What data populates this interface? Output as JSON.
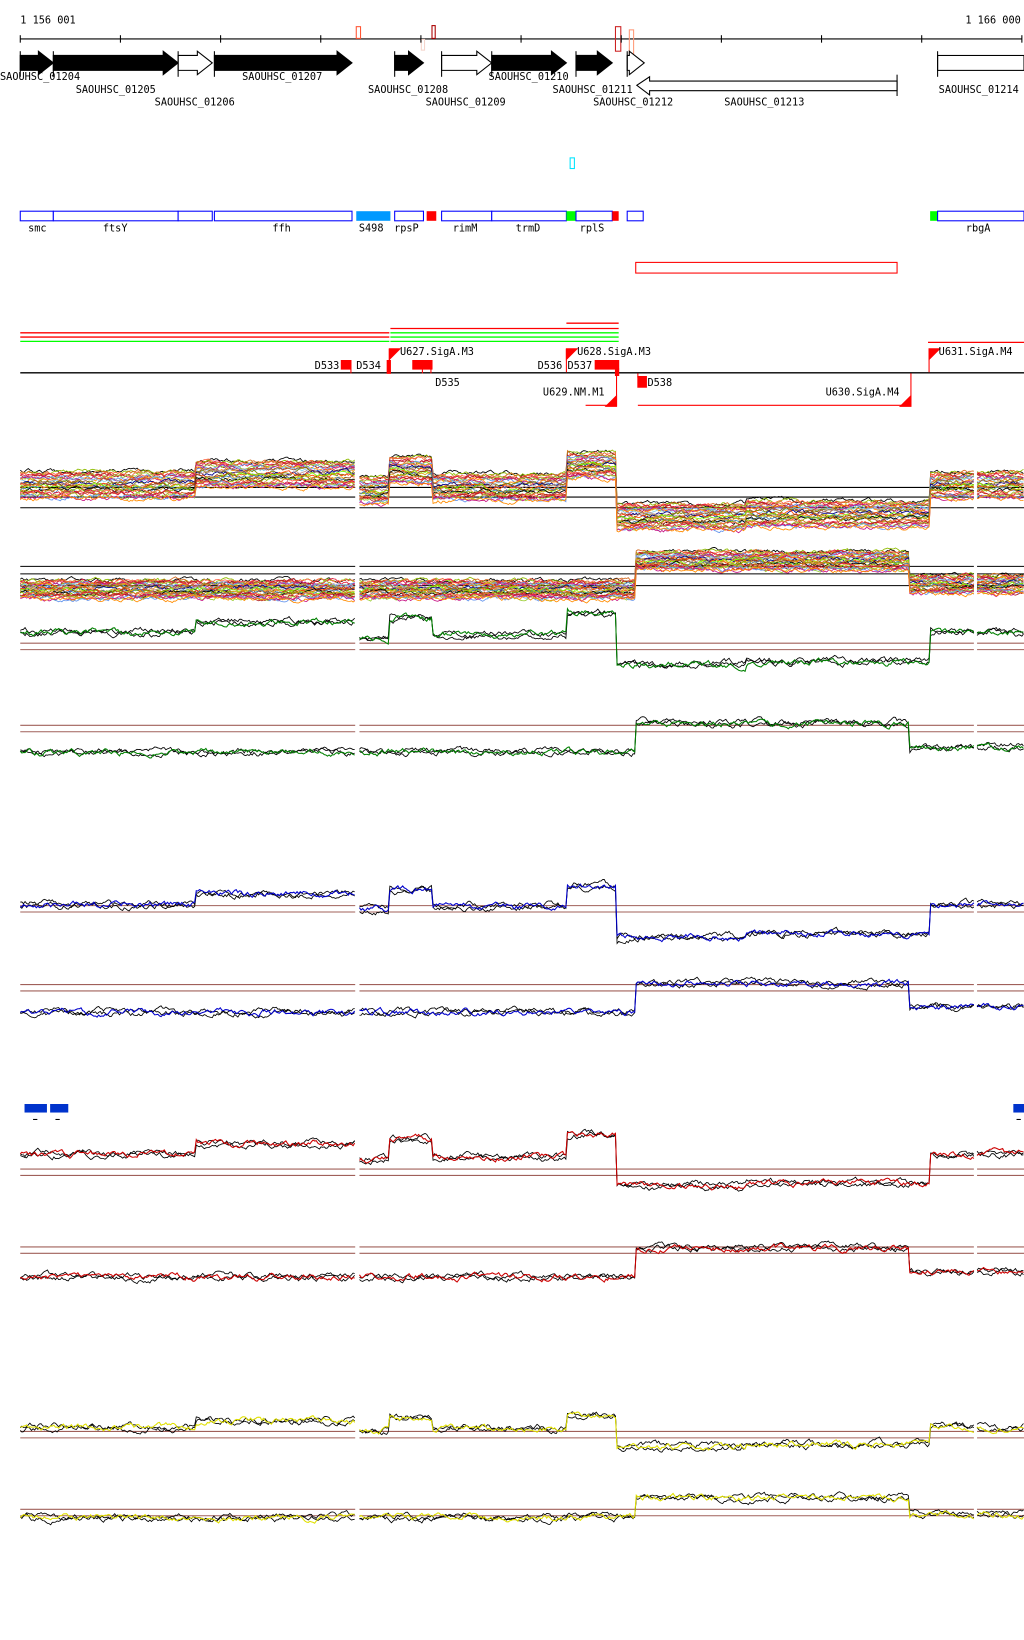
{
  "ruler": {
    "start_label": "1 156 001",
    "end_label": "1 166 000"
  },
  "genes": [
    {
      "name": "SAOUHSC_01204",
      "strand": "+",
      "filled": true
    },
    {
      "name": "SAOUHSC_01205",
      "strand": "+",
      "filled": true
    },
    {
      "name": "SAOUHSC_01206",
      "strand": "+",
      "filled": false
    },
    {
      "name": "SAOUHSC_01207",
      "strand": "+",
      "filled": true
    },
    {
      "name": "SAOUHSC_01208",
      "strand": "+",
      "filled": true
    },
    {
      "name": "SAOUHSC_01209",
      "strand": "+",
      "filled": false
    },
    {
      "name": "SAOUHSC_01210",
      "strand": "+",
      "filled": true
    },
    {
      "name": "SAOUHSC_01211",
      "strand": "+",
      "filled": true
    },
    {
      "name": "SAOUHSC_01212",
      "strand": "+",
      "filled": false
    },
    {
      "name": "SAOUHSC_01213",
      "strand": "-",
      "filled": false
    },
    {
      "name": "SAOUHSC_01214",
      "strand": "+",
      "filled": false
    }
  ],
  "annotations": {
    "labels": [
      "smc",
      "ftsY",
      "ffh",
      "S498",
      "rpsP",
      "rimM",
      "trmD",
      "rplS",
      "rbgA"
    ]
  },
  "tss": {
    "labels": [
      "D533",
      "U627.SigA.M3",
      "D534",
      "D535",
      "U628.SigA.M3",
      "D536",
      "D537",
      "D538",
      "U629.NM.M1",
      "U630.SigA.M4",
      "U631.SigA.M4"
    ]
  },
  "colors": {
    "gene_fill": "#000000",
    "annotation_outline": "#0000ff",
    "srna_fill": "#0099ff",
    "marker_red": "#ff0000",
    "marker_green": "#00ff00",
    "threshold_line": "#a0605a",
    "track_green": "#008000",
    "track_blue": "#0000cc",
    "track_red": "#cc0000",
    "track_yellow": "#e0e000",
    "block_blue": "#0033cc",
    "palette": [
      "#000000",
      "#8fbc00",
      "#d2691e",
      "#ff6347",
      "#dc143c",
      "#b22222",
      "#9acd32",
      "#6495ed",
      "#c71585",
      "#ff8c00",
      "#87ceeb",
      "#a0522d",
      "#808000",
      "#00008b",
      "#bc8f8f",
      "#ff4500",
      "#7cfc00",
      "#8b4513",
      "#daa520",
      "#4682b4"
    ]
  }
}
